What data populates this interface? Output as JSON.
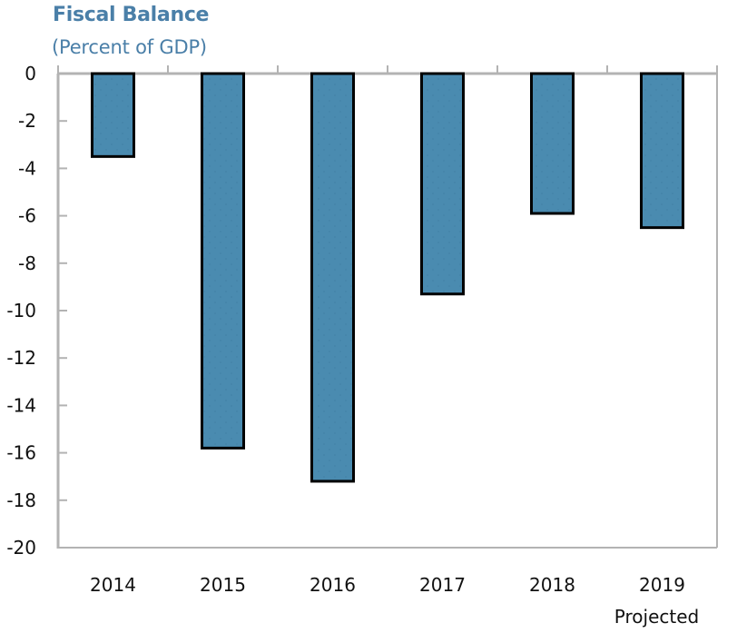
{
  "chart_data": {
    "type": "bar",
    "title": "Fiscal Balance",
    "subtitle": "(Percent of GDP)",
    "xlabel": "",
    "ylabel": "",
    "categories": [
      "2014",
      "2015",
      "2016",
      "2017",
      "2018",
      "2019"
    ],
    "category_sublabels": [
      "",
      "",
      "",
      "",
      "",
      "Projected"
    ],
    "values": [
      -3.5,
      -15.8,
      -17.2,
      -9.3,
      -5.9,
      -6.5
    ],
    "ylim": [
      -20,
      0
    ],
    "yticks": [
      0,
      -2,
      -4,
      -6,
      -8,
      -10,
      -12,
      -14,
      -16,
      -18,
      -20
    ],
    "grid": false,
    "legend": "none",
    "colors": {
      "bar": "#4a8bb0",
      "bar_edge": "#000000",
      "axis": "#b3b3b3",
      "title": "#4a7fa8"
    }
  }
}
